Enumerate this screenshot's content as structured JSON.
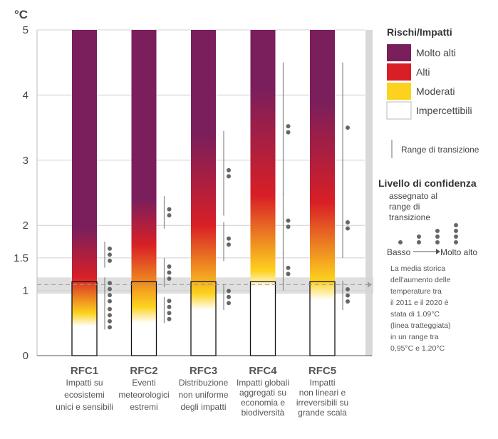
{
  "colors": {
    "very_high": "#7a1f5c",
    "high": "#d81f26",
    "moderate": "#fdd21e",
    "undetectable": "#ffffff",
    "historical_band": "#d4d4d4",
    "transition_line": "#888888",
    "dot": "#666666"
  },
  "chart_data": {
    "type": "bar",
    "ylabel": "°C",
    "ylim": [
      0,
      5
    ],
    "y_ticks": [
      "0",
      "1",
      "1.5",
      "2",
      "3",
      "4",
      "5"
    ],
    "y_tick_values": [
      0,
      1,
      1.5,
      2,
      3,
      4,
      5
    ],
    "historical_mean": 1.09,
    "historical_range": [
      0.95,
      1.2
    ],
    "categories": [
      {
        "name": "RFC1",
        "description": [
          "Impatti su",
          "ecosistemi",
          "unici e sensibili"
        ],
        "risk_stops": [
          {
            "t": 0.45,
            "level": "undetectable"
          },
          {
            "t": 0.65,
            "level": "moderate"
          },
          {
            "t": 1.2,
            "level": "high"
          },
          {
            "t": 1.95,
            "level": "very_high"
          }
        ],
        "transitions": [
          {
            "range": [
              0.4,
              0.75
            ],
            "dots": 4
          },
          {
            "range": [
              0.75,
              1.2
            ],
            "dots": 4
          },
          {
            "range": [
              1.35,
              1.75
            ],
            "dots": 3
          }
        ]
      },
      {
        "name": "RFC2",
        "description": [
          "Eventi",
          "meteorologici",
          "estremi"
        ],
        "risk_stops": [
          {
            "t": 0.5,
            "level": "undetectable"
          },
          {
            "t": 0.75,
            "level": "moderate"
          },
          {
            "t": 1.7,
            "level": "high"
          },
          {
            "t": 2.4,
            "level": "very_high"
          }
        ],
        "transitions": [
          {
            "range": [
              0.5,
              0.9
            ],
            "dots": 4
          },
          {
            "range": [
              1.05,
              1.5
            ],
            "dots": 3
          },
          {
            "range": [
              1.95,
              2.45
            ],
            "dots": 2
          }
        ]
      },
      {
        "name": "RFC3",
        "description": [
          "Distribuzione",
          "non uniforme",
          "degli impatti"
        ],
        "risk_stops": [
          {
            "t": 0.7,
            "level": "undetectable"
          },
          {
            "t": 0.95,
            "level": "moderate"
          },
          {
            "t": 2.0,
            "level": "high"
          },
          {
            "t": 3.4,
            "level": "very_high"
          }
        ],
        "transitions": [
          {
            "range": [
              0.7,
              1.1
            ],
            "dots": 3
          },
          {
            "range": [
              1.45,
              2.05
            ],
            "dots": 2
          },
          {
            "range": [
              2.15,
              3.45
            ],
            "dots": 2
          }
        ]
      },
      {
        "name": "RFC4",
        "description": [
          "Impatti globali",
          "aggregati su",
          "economia e",
          "biodiversità"
        ],
        "risk_stops": [
          {
            "t": 1.05,
            "level": "undetectable"
          },
          {
            "t": 1.3,
            "level": "moderate"
          },
          {
            "t": 2.45,
            "level": "high"
          },
          {
            "t": 4.1,
            "level": "very_high"
          }
        ],
        "transitions": [
          {
            "range": [
              1.0,
              1.6
            ],
            "dots": 2
          },
          {
            "range": [
              1.55,
              2.5
            ],
            "dots": 2
          },
          {
            "range": [
              2.45,
              4.5
            ],
            "dots": 2
          }
        ]
      },
      {
        "name": "RFC5",
        "description": [
          "Impatti",
          "non lineari e",
          "irreversibili su",
          "grande scala"
        ],
        "risk_stops": [
          {
            "t": 0.85,
            "level": "undetectable"
          },
          {
            "t": 1.15,
            "level": "moderate"
          },
          {
            "t": 2.35,
            "level": "high"
          },
          {
            "t": 3.9,
            "level": "very_high"
          }
        ],
        "transitions": [
          {
            "range": [
              0.7,
              1.15
            ],
            "dots": 3
          },
          {
            "range": [
              1.5,
              2.5
            ],
            "dots": 2
          },
          {
            "range": [
              2.5,
              4.5
            ],
            "dots": 1
          }
        ]
      }
    ]
  },
  "legend": {
    "title": "Rischi/Impatti",
    "items": [
      {
        "label": "Molto alti",
        "level": "very_high"
      },
      {
        "label": "Alti",
        "level": "high"
      },
      {
        "label": "Moderati",
        "level": "moderate"
      },
      {
        "label": "Impercettibili",
        "level": "undetectable"
      }
    ],
    "transition_label": "Range di transizione",
    "confidence_title": "Livello di confidenza",
    "confidence_subtitle": [
      "assegnato al",
      "range di",
      "transizione"
    ],
    "confidence_low": "Basso",
    "confidence_high": "Molto alto",
    "note": [
      "La media storica",
      "dell'aumento delle",
      "temperature tra",
      "il 2011 e il 2020 è",
      "stata di 1.09°C",
      "(linea tratteggiata)",
      "in un range tra",
      "0,95°C e 1.20°C"
    ]
  }
}
